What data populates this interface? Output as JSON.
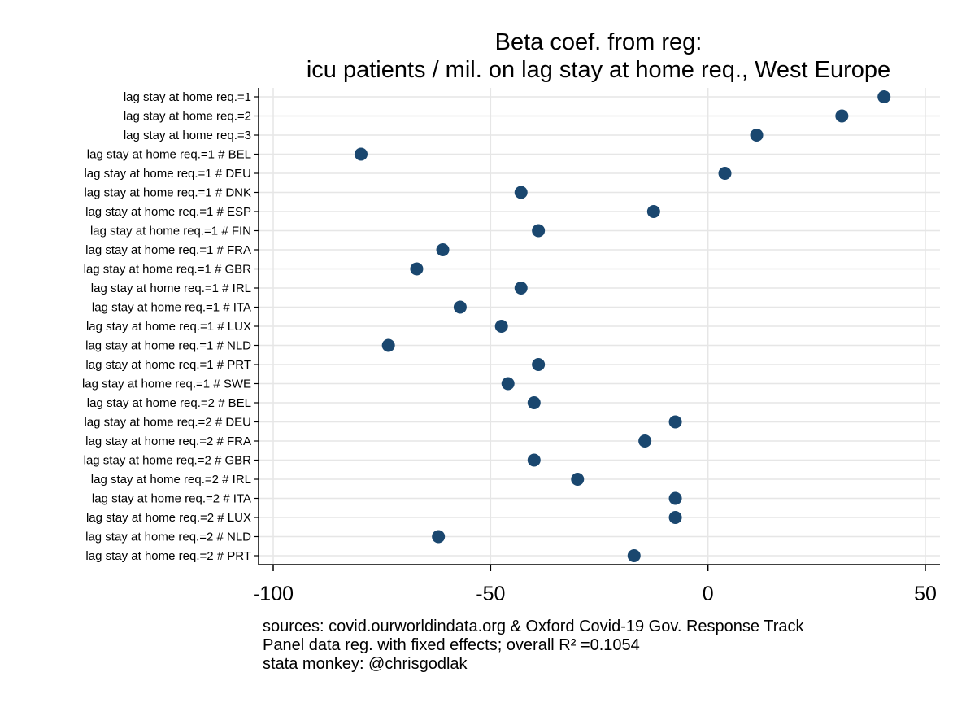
{
  "chart_data": {
    "type": "scatter",
    "title": [
      "Beta coef. from reg:",
      "icu patients / mil. on lag stay at home req., West Europe"
    ],
    "xlabel": "",
    "ylabel": "",
    "xlim": [
      -100,
      50
    ],
    "xticks": [
      -100,
      -50,
      0,
      50
    ],
    "xtick_labels": [
      "-100",
      "-50",
      "0",
      "50"
    ],
    "grid": true,
    "marker_color": "#1a476f",
    "categories": [
      "lag stay at home req.=1",
      "lag stay at home req.=2",
      "lag stay at home req.=3",
      "lag stay at home req.=1 # BEL",
      "lag stay at home req.=1 # DEU",
      "lag stay at home req.=1 # DNK",
      "lag stay at home req.=1 # ESP",
      "lag stay at home req.=1 # FIN",
      "lag stay at home req.=1 # FRA",
      "lag stay at home req.=1 # GBR",
      "lag stay at home req.=1 # IRL",
      "lag stay at home req.=1 # ITA",
      "lag stay at home req.=1 # LUX",
      "lag stay at home req.=1 # NLD",
      "lag stay at home req.=1 # PRT",
      "lag stay at home req.=1 # SWE",
      "lag stay at home req.=2 # BEL",
      "lag stay at home req.=2 # DEU",
      "lag stay at home req.=2 # FRA",
      "lag stay at home req.=2 # GBR",
      "lag stay at home req.=2 # IRL",
      "lag stay at home req.=2 # ITA",
      "lag stay at home req.=2 # LUX",
      "lag stay at home req.=2 # NLD",
      "lag stay at home req.=2 # PRT"
    ],
    "values": [
      40.5,
      30.8,
      11.2,
      -79.8,
      3.9,
      -43.0,
      -12.5,
      -39.0,
      -61.0,
      -67.0,
      -43.0,
      -57.0,
      -47.5,
      -73.5,
      -39.0,
      -46.0,
      -40.0,
      -7.5,
      -14.5,
      -40.0,
      -30.0,
      -7.5,
      -7.5,
      -62.0,
      -17.0
    ],
    "notes": [
      "sources: covid.ourworldindata.org & Oxford Covid-19 Gov. Response Track",
      "Panel data reg. with fixed effects; overall R² =0.1054",
      "stata monkey: @chrisgodlak"
    ]
  }
}
